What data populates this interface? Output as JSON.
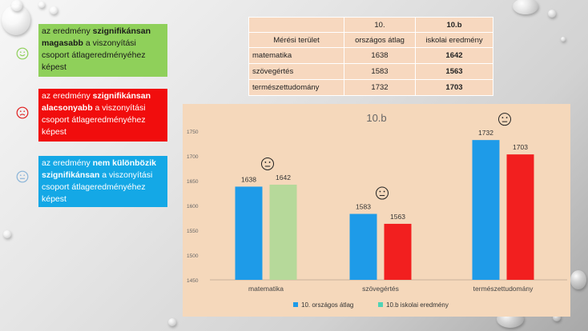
{
  "legend_items": [
    {
      "prefix": "az eredmény ",
      "bold": "szignifikánsan magasabb",
      "suffix": " a viszonyítási csoport átlageredményéhez képest",
      "face": "smile-icon",
      "color": "#8fd05a"
    },
    {
      "prefix": "az eredmény ",
      "bold": "szignifikánsan alacsonyabb",
      "suffix": " a viszonyítási csoport átlageredményéhez képest",
      "face": "frown-icon",
      "color": "#f10d0d"
    },
    {
      "prefix": "az eredmény ",
      "bold": "nem különbözik szignifikánsan",
      "suffix": " a viszonyítási csoport átlageredményéhez képest",
      "face": "neutral-face-icon",
      "color": "#14a8e6"
    }
  ],
  "table": {
    "header_area": "Mérési terület",
    "header_national_line1": "10.",
    "header_national_line2": "országos átlag",
    "header_school_line1": "10.b",
    "header_school_line2": "iskolai eredmény",
    "rows": [
      {
        "area": "matematika",
        "national": "1638",
        "school": "1642"
      },
      {
        "area": "szövegértés",
        "national": "1583",
        "school": "1563"
      },
      {
        "area": "természettudomány",
        "national": "1732",
        "school": "1703"
      }
    ]
  },
  "chart_data": {
    "type": "bar",
    "title": "10.b",
    "categories": [
      "matematika",
      "szövegértés",
      "természettudomány"
    ],
    "series": [
      {
        "name": "10. országos átlag",
        "values": [
          1638,
          1583,
          1732
        ],
        "color": "#1e9be8"
      },
      {
        "name": "10.b iskolai eredmény",
        "values": [
          1642,
          1563,
          1703
        ]
      }
    ],
    "school_bar_colors": [
      "#b6d99a",
      "#f21f1f",
      "#f21f1f"
    ],
    "school_legend_color": "#4fd3b5",
    "ylim": [
      1450,
      1750
    ],
    "yticks": [
      "1450",
      "1500",
      "1550",
      "1600",
      "1650",
      "1700",
      "1750"
    ],
    "category_faces": [
      "neutral-face-icon",
      "neutral-face-icon",
      "neutral-face-icon"
    ],
    "grid": false,
    "legend_position": "bottom"
  }
}
